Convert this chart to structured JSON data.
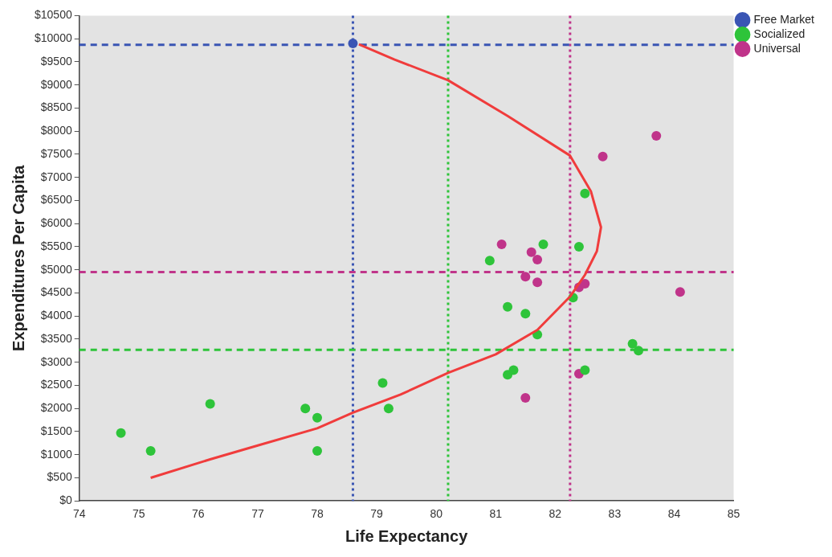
{
  "chart_data": {
    "type": "scatter",
    "xlabel": "Life Expectancy",
    "ylabel": "Expenditures Per Capita",
    "xlim": [
      74,
      85
    ],
    "xticks": [
      74,
      75,
      76,
      77,
      78,
      79,
      80,
      81,
      82,
      83,
      84,
      85
    ],
    "ylim": [
      0,
      10500
    ],
    "yticks": [
      {
        "value": 0,
        "label": "$0"
      },
      {
        "value": 500,
        "label": "$500"
      },
      {
        "value": 1000,
        "label": "$1000"
      },
      {
        "value": 1500,
        "label": "$1500"
      },
      {
        "value": 2000,
        "label": "$2000"
      },
      {
        "value": 2500,
        "label": "$2500"
      },
      {
        "value": 3000,
        "label": "$3000"
      },
      {
        "value": 3500,
        "label": "$3500"
      },
      {
        "value": 4000,
        "label": "$4000"
      },
      {
        "value": 4500,
        "label": "$4500"
      },
      {
        "value": 5000,
        "label": "$5000"
      },
      {
        "value": 5500,
        "label": "$5500"
      },
      {
        "value": 6000,
        "label": "$6000"
      },
      {
        "value": 6500,
        "label": "$6500"
      },
      {
        "value": 7000,
        "label": "$7000"
      },
      {
        "value": 7500,
        "label": "$7500"
      },
      {
        "value": 8000,
        "label": "$8000"
      },
      {
        "value": 8500,
        "label": "$8500"
      },
      {
        "value": 9000,
        "label": "$9000"
      },
      {
        "value": 9500,
        "label": "$9500"
      },
      {
        "value": 10000,
        "label": "$10000"
      },
      {
        "value": 10500,
        "label": "$10500"
      }
    ],
    "grid": false,
    "legend": "top right",
    "marker": "circle",
    "series": [
      {
        "name": "Free Market",
        "color": "#3a55b4",
        "x": [
          78.6
        ],
        "values": [
          9900
        ]
      },
      {
        "name": "Socialized",
        "color": "#2ec43a",
        "x": [
          74.7,
          75.2,
          76.2,
          77.8,
          78.0,
          78.0,
          79.1,
          79.2,
          80.9,
          81.2,
          81.5,
          81.7,
          81.8,
          81.2,
          81.3,
          82.4,
          82.5,
          82.3,
          82.5,
          83.3,
          83.4
        ],
        "values": [
          1470,
          1080,
          2100,
          2000,
          1800,
          1080,
          2550,
          2000,
          5200,
          4200,
          4050,
          3600,
          5550,
          2730,
          2830,
          5500,
          6650,
          4400,
          2830,
          3400,
          3250
        ]
      },
      {
        "name": "Universal",
        "color": "#c0348a",
        "x": [
          81.1,
          81.6,
          81.7,
          81.5,
          81.7,
          82.4,
          82.5,
          82.4,
          81.5,
          82.8,
          83.7,
          84.1
        ],
        "values": [
          5550,
          5380,
          5220,
          4850,
          4730,
          4620,
          4700,
          2750,
          2230,
          7450,
          7900,
          4520
        ]
      },
      {
        "type": "line",
        "color": "#f03c3c",
        "marker": "none",
        "x": [
          75.2,
          76.2,
          77,
          78,
          78.6,
          79.4,
          80.2,
          81,
          81.7,
          82.25,
          82.5,
          82.7,
          82.77,
          82.6,
          82.25,
          81.2,
          80.2,
          79.3,
          78.7
        ],
        "values": [
          500,
          900,
          1200,
          1570,
          1910,
          2300,
          2770,
          3170,
          3700,
          4420,
          4890,
          5400,
          5920,
          6700,
          7470,
          8330,
          9100,
          9550,
          9880
        ]
      }
    ],
    "ref_lines": [
      {
        "axis": "x",
        "value": 78.6,
        "color": "#3a55b4",
        "line_style": "dotted"
      },
      {
        "axis": "x",
        "value": 80.2,
        "color": "#2ec43a",
        "line_style": "dotted"
      },
      {
        "axis": "x",
        "value": 82.25,
        "color": "#c0348a",
        "line_style": "dotted"
      },
      {
        "axis": "y",
        "value": 9870,
        "color": "#3a55b4",
        "line_style": "dashed"
      },
      {
        "axis": "y",
        "value": 4950,
        "color": "#c0348a",
        "line_style": "dashed"
      },
      {
        "axis": "y",
        "value": 3270,
        "color": "#2ec43a",
        "line_style": "dashed"
      }
    ]
  }
}
